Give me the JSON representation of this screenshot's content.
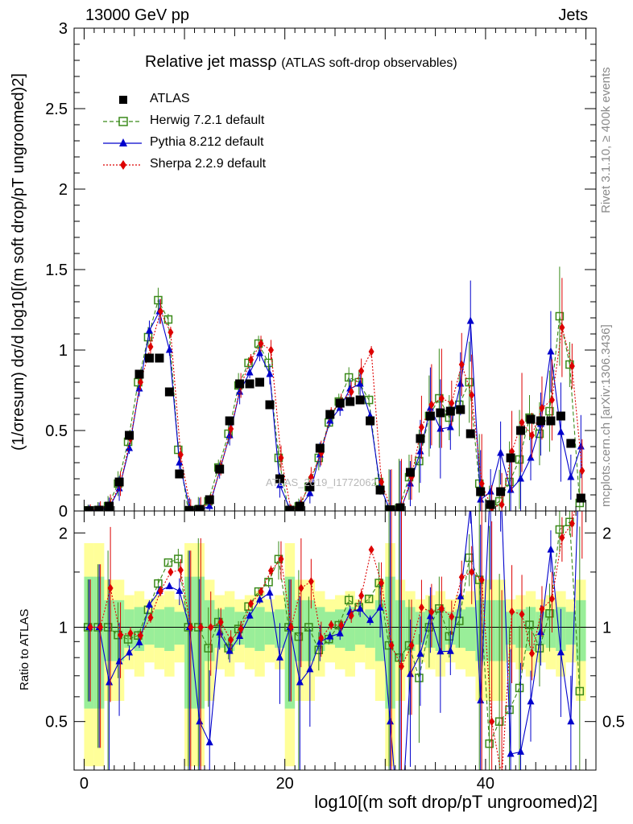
{
  "header": {
    "left": "13000 GeV pp",
    "right": "Jets"
  },
  "side_labels": {
    "rivet": "Rivet 3.1.10, ≥ 400k events",
    "mcplots": "mcplots.cern.ch [arXiv:1306.3436]"
  },
  "watermark": "ATLAS_2019_I1772062",
  "chart_data": {
    "type": "scatter",
    "title": "Relative jet massρ",
    "subtitle": "(ATLAS soft-drop observables)",
    "ylabel": "(1/σresum) dσ/d log10[(m soft drop/pT ungroomed)2]",
    "ratio_ylabel": "Ratio to ATLAS",
    "xlabel": "log10[(m soft drop/pT ungroomed)2]",
    "xlim": [
      -1,
      51
    ],
    "ylim": [
      0,
      3
    ],
    "ratio_ylim": [
      0.35,
      2.35
    ],
    "xticks": [
      0,
      20,
      40
    ],
    "yticks": [
      0,
      0.5,
      1,
      1.5,
      2,
      2.5,
      3
    ],
    "yticklabels": [
      "0",
      "0.5",
      "1",
      "1.5",
      "2",
      "2.5",
      "3"
    ],
    "ratio_yticks": [
      0.5,
      1,
      2
    ],
    "ratio_yticklabels": [
      "0.5",
      "1",
      "2"
    ],
    "legend": [
      "ATLAS",
      "Herwig 7.2.1 default",
      "Pythia 8.212 default",
      "Sherpa 2.2.9 default"
    ],
    "x": [
      0.5,
      1.5,
      2.5,
      3.5,
      4.5,
      5.5,
      6.5,
      7.5,
      8.5,
      9.5,
      10.5,
      11.5,
      12.5,
      13.5,
      14.5,
      15.5,
      16.5,
      17.5,
      18.5,
      19.5,
      20.5,
      21.5,
      22.5,
      23.5,
      24.5,
      25.5,
      26.5,
      27.5,
      28.5,
      29.5,
      30.5,
      31.5,
      32.5,
      33.5,
      34.5,
      35.5,
      36.5,
      37.5,
      38.5,
      39.5,
      40.5,
      41.5,
      42.5,
      43.5,
      44.5,
      45.5,
      46.5,
      47.5,
      48.5,
      49.5
    ],
    "series": [
      {
        "name": "ATLAS",
        "color": "#000000",
        "values": [
          0.002,
          0.005,
          0.03,
          0.18,
          0.47,
          0.85,
          0.95,
          0.95,
          0.74,
          0.23,
          0.004,
          0.01,
          0.07,
          0.26,
          0.56,
          0.79,
          0.79,
          0.8,
          0.66,
          0.2,
          0.005,
          0.03,
          0.15,
          0.39,
          0.6,
          0.67,
          0.68,
          0.69,
          0.56,
          0.13,
          0.008,
          0.02,
          0.24,
          0.45,
          0.59,
          0.61,
          0.62,
          0.63,
          0.48,
          0.12,
          0.04,
          0.12,
          0.33,
          0.5,
          0.57,
          0.56,
          0.56,
          0.59,
          0.42,
          0.08
        ]
      },
      {
        "name": "Herwig 7.2.1 default",
        "color": "#3a8a1a",
        "values": [
          0.004,
          0.006,
          0.03,
          0.17,
          0.43,
          0.8,
          1.08,
          1.31,
          1.19,
          0.38,
          0.003,
          0.01,
          0.06,
          0.27,
          0.48,
          0.78,
          0.92,
          1.04,
          0.92,
          0.33,
          0.004,
          0.028,
          0.15,
          0.33,
          0.55,
          0.68,
          0.83,
          0.8,
          0.69,
          0.18,
          0.007,
          0.016,
          0.21,
          0.31,
          0.59,
          0.7,
          0.58,
          0.66,
          0.8,
          0.17,
          0.017,
          0.06,
          0.18,
          0.32,
          0.58,
          0.48,
          0.62,
          1.21,
          0.91,
          0.05
        ]
      },
      {
        "name": "Pythia 8.212 default",
        "color": "#0000cc",
        "values": [
          0.003,
          0.004,
          0.02,
          0.14,
          0.39,
          0.76,
          1.12,
          1.24,
          1.0,
          0.3,
          0.02,
          0.005,
          0.03,
          0.25,
          0.47,
          0.74,
          0.86,
          0.98,
          0.85,
          0.16,
          0.013,
          0.02,
          0.11,
          0.35,
          0.56,
          0.64,
          0.76,
          0.79,
          0.59,
          0.15,
          0.004,
          0.004,
          0.17,
          0.37,
          0.64,
          0.51,
          0.52,
          0.79,
          1.18,
          0.07,
          0.12,
          0.36,
          0.13,
          0.2,
          0.33,
          0.54,
          0.99,
          0.49,
          0.21,
          0.4
        ]
      },
      {
        "name": "Sherpa 2.2.9 default",
        "color": "#dd0000",
        "values": [
          0.006,
          0.011,
          0.04,
          0.17,
          0.45,
          0.8,
          1.02,
          1.24,
          1.11,
          0.35,
          0.01,
          0.01,
          0.07,
          0.27,
          0.51,
          0.78,
          0.94,
          1.04,
          1.0,
          0.33,
          0.005,
          0.04,
          0.21,
          0.36,
          0.61,
          0.68,
          0.74,
          0.87,
          0.99,
          0.18,
          0.007,
          0.015,
          0.21,
          0.52,
          0.66,
          0.7,
          0.67,
          0.91,
          0.72,
          0.17,
          0.02,
          0.04,
          0.37,
          0.55,
          0.47,
          0.64,
          0.69,
          1.14,
          0.9,
          0.25
        ]
      }
    ]
  }
}
